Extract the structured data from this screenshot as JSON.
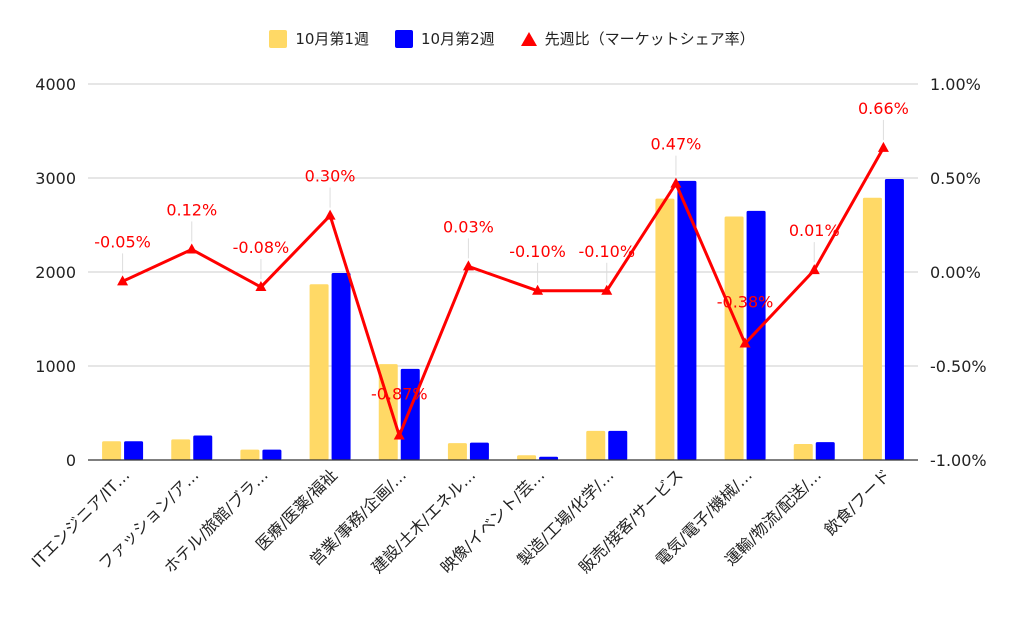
{
  "chart_data": {
    "type": "bar",
    "categories": [
      "ITエンジニア/IT…",
      "ファッション/ア…",
      "ホテル/旅館/ブラ…",
      "医療/医薬/福祉",
      "営業/事務/企画/…",
      "建設/土木/エネル…",
      "映像/イベント/芸…",
      "製造/工場/化学/…",
      "販売/接客/サービス",
      "電気/電子/機械/…",
      "運輸/物流/配送/…",
      "飲食/フード"
    ],
    "series": [
      {
        "name": "10月第1週",
        "color": "#ffd966",
        "axis": "left",
        "type": "bar",
        "values": [
          200,
          220,
          110,
          1870,
          1020,
          180,
          50,
          310,
          2780,
          2590,
          170,
          2790
        ]
      },
      {
        "name": "10月第2週",
        "color": "#0000ff",
        "axis": "left",
        "type": "bar",
        "values": [
          200,
          260,
          110,
          1990,
          970,
          185,
          35,
          310,
          2970,
          2650,
          190,
          2990
        ]
      },
      {
        "name": "先週比（マーケットシェア率）",
        "color": "#ff0000",
        "axis": "right",
        "type": "line",
        "values": [
          -0.0005,
          0.0012,
          -0.0008,
          0.003,
          -0.0087,
          0.0003,
          -0.001,
          -0.001,
          0.0047,
          -0.0038,
          0.0001,
          0.0066
        ]
      }
    ],
    "line_labels": [
      "-0.05%",
      "0.12%",
      "-0.08%",
      "0.30%",
      "-0.87%",
      "0.03%",
      "-0.10%",
      "-0.10%",
      "0.47%",
      "-0.38%",
      "0.01%",
      "0.66%"
    ],
    "left_axis": {
      "ylim": [
        0,
        4000
      ],
      "ticks": [
        "0",
        "1000",
        "2000",
        "3000",
        "4000"
      ]
    },
    "right_axis": {
      "ylim": [
        -0.01,
        0.01
      ],
      "ticks": [
        "-1.00%",
        "-0.50%",
        "0.00%",
        "0.50%",
        "1.00%"
      ]
    },
    "grid": true,
    "legend_position": "top"
  }
}
